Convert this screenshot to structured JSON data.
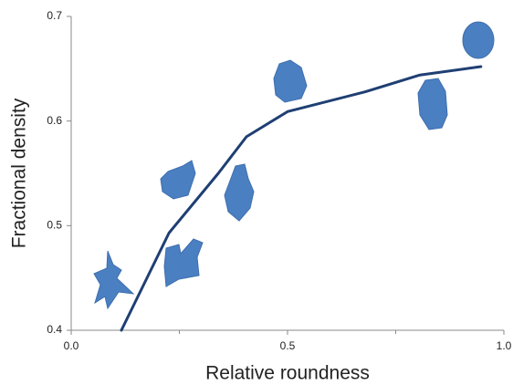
{
  "chart_data": {
    "type": "line",
    "x_label": "Relative roundness",
    "y_label": "Fractional density",
    "x": [
      0.116,
      0.226,
      0.34,
      0.405,
      0.5,
      0.68,
      0.806,
      0.947
    ],
    "series": [
      {
        "color": "#1f3f73",
        "values": [
          0.4,
          0.493,
          0.55,
          0.585,
          0.609,
          0.628,
          0.644,
          0.652
        ]
      }
    ],
    "xlim": [
      0,
      1
    ],
    "ylim": [
      0.4,
      0.7
    ],
    "xticks": [
      {
        "value": 0,
        "label": "0.0"
      },
      0.5,
      {
        "value": 1,
        "label": "1.0"
      }
    ],
    "xminor_ticks": [
      0.25,
      0.75
    ],
    "yticks": [
      0.4,
      0.5,
      0.6,
      0.7
    ],
    "grid": false
  }
}
